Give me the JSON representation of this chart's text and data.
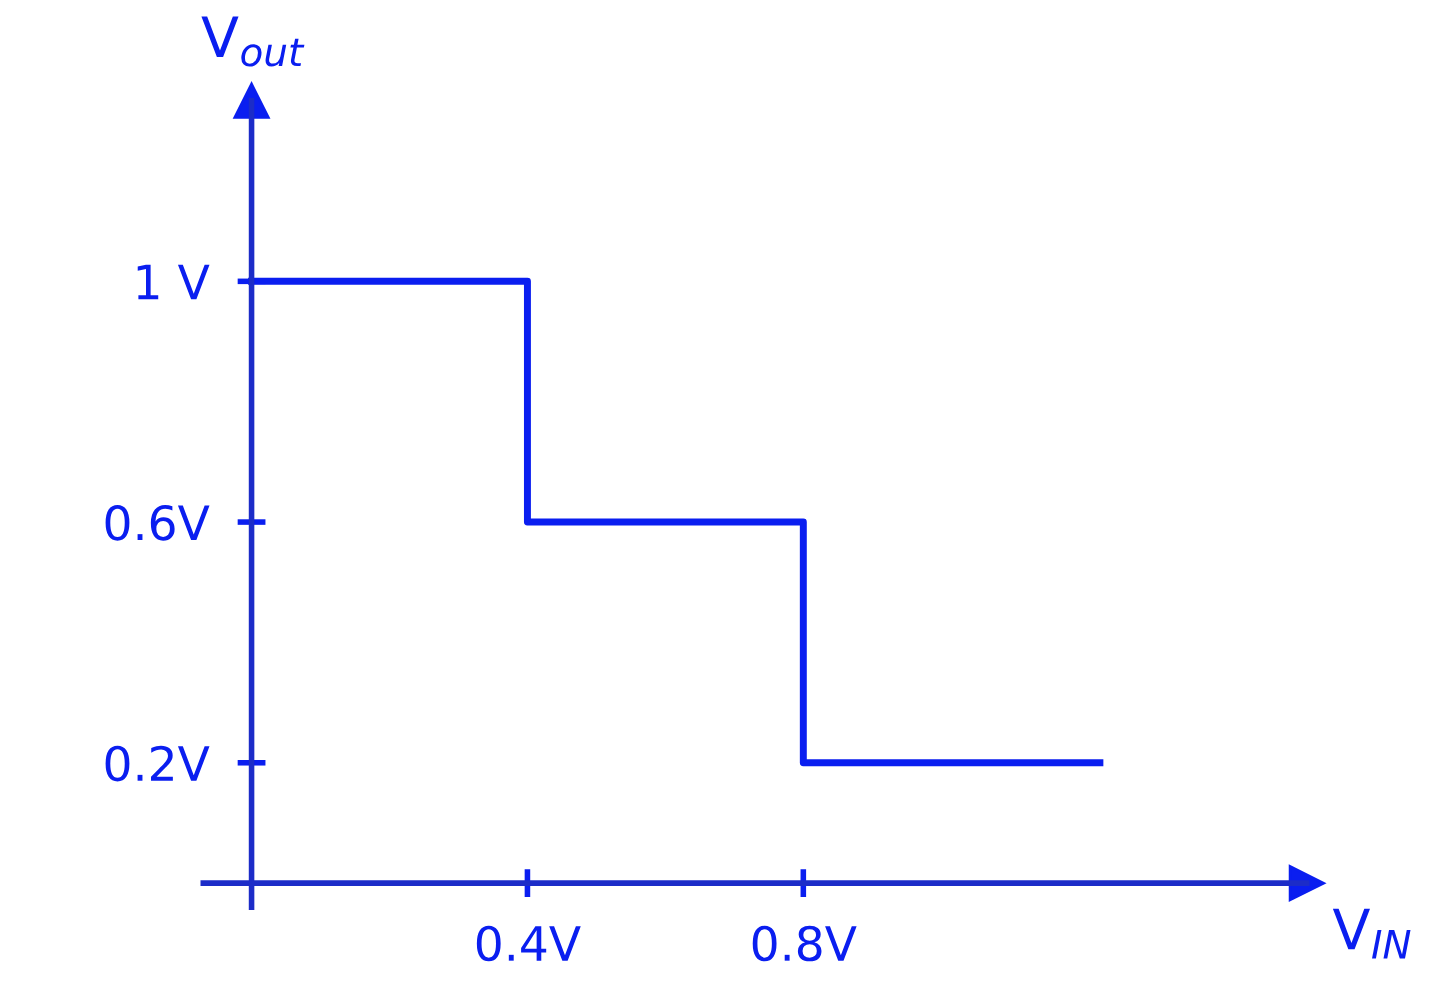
{
  "chart_data": {
    "type": "step",
    "xlabel": "V$_{IN}$",
    "ylabel": "V$_{out}$",
    "x": [
      0,
      0.4,
      0.8,
      1.23
    ],
    "series": [
      {
        "color": "#0a1ef0",
        "values": [
          1,
          0.6,
          0.2,
          0.2
        ]
      }
    ],
    "xlim": [
      -0.07,
      1.53
    ],
    "ylim": [
      -0.04,
      1.3
    ],
    "xticks": [
      {
        "value": 0.4,
        "label": "0.4V"
      },
      {
        "value": 0.8,
        "label": "0.8V"
      }
    ],
    "yticks": [
      {
        "value": 0.2,
        "label": "0.2V"
      },
      {
        "value": 0.6,
        "label": "0.6V"
      },
      {
        "value": 1,
        "label": "1 V"
      }
    ],
    "grid": false,
    "legend": false
  }
}
